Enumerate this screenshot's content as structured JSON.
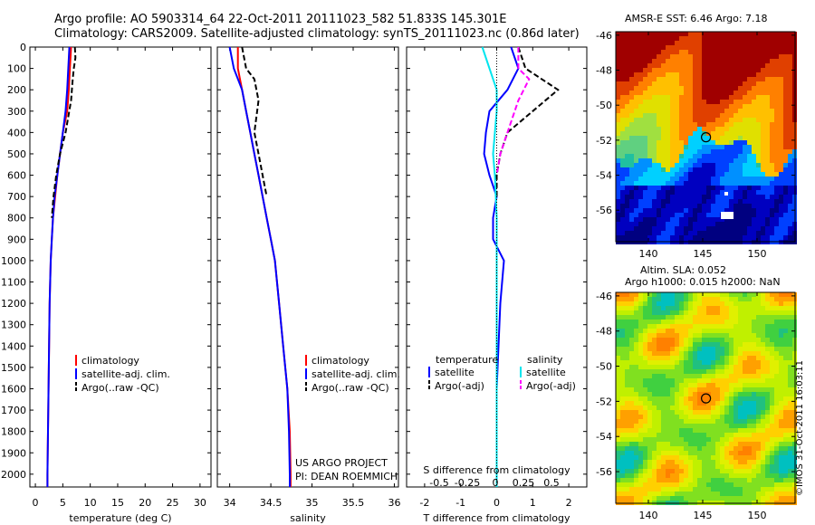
{
  "header": {
    "title_line1": "Argo profile: AO 5903314_64 22-Oct-2011 20111023_582 51.833S 145.301E",
    "title_line2": "Climatology: CARS2009. Satellite-adjusted climatology: synTS_20111023.nc (0.86d later)"
  },
  "chart_data": [
    {
      "type": "line",
      "id": "temperature",
      "xlabel": "temperature (deg C)",
      "xlim": [
        -1,
        32
      ],
      "xticks": [
        0,
        5,
        10,
        15,
        20,
        25,
        30
      ],
      "ylim": [
        0,
        2060
      ],
      "yticks": [
        0,
        100,
        200,
        300,
        400,
        500,
        600,
        700,
        800,
        900,
        1000,
        1100,
        1200,
        1300,
        1400,
        1500,
        1600,
        1700,
        1800,
        1900,
        2000
      ],
      "legend": [
        "climatology",
        "satellite-adj. clim.",
        "Argo(..raw -QC)"
      ],
      "series": [
        {
          "name": "climatology",
          "color": "#ff0000",
          "x": [
            6.5,
            6.3,
            6.1,
            5.8,
            5.0,
            4.5,
            4.0,
            3.6,
            3.2,
            3.0,
            2.8,
            2.6,
            2.5,
            2.45,
            2.4,
            2.35,
            2.3,
            2.25,
            2.2,
            2.2
          ],
          "y": [
            0,
            100,
            200,
            300,
            400,
            500,
            600,
            700,
            800,
            900,
            1000,
            1200,
            1400,
            1500,
            1600,
            1700,
            1800,
            1900,
            2000,
            2060
          ]
        },
        {
          "name": "satellite-adj. clim.",
          "color": "#0000ff",
          "x": [
            6.2,
            6.0,
            5.8,
            5.5,
            5.0,
            4.5,
            4.0,
            3.5,
            3.2,
            3.0,
            2.8,
            2.6,
            2.5,
            2.45,
            2.4,
            2.35,
            2.3,
            2.25,
            2.2,
            2.2
          ],
          "y": [
            0,
            100,
            200,
            300,
            400,
            500,
            600,
            700,
            800,
            900,
            1000,
            1200,
            1400,
            1500,
            1600,
            1700,
            1800,
            1900,
            2000,
            2060
          ]
        },
        {
          "name": "Argo(..raw -QC)",
          "color": "#000000",
          "dash": true,
          "x": [
            7.2,
            7.3,
            7.0,
            6.8,
            6.5,
            5.5,
            4.5,
            3.8,
            3.3,
            3.0
          ],
          "y": [
            0,
            50,
            100,
            150,
            250,
            400,
            500,
            600,
            700,
            800
          ]
        }
      ]
    },
    {
      "type": "line",
      "id": "salinity",
      "xlabel": "salinity",
      "xlim": [
        33.85,
        36.05
      ],
      "xticks": [
        34,
        34.5,
        35,
        35.5,
        36
      ],
      "ylim": [
        0,
        2060
      ],
      "legend": [
        "climatology",
        "satellite-adj. clim.",
        "Argo(..raw -QC)"
      ],
      "annotations": [
        "US ARGO PROJECT",
        "PI: DEAN ROEMMICH"
      ],
      "series": [
        {
          "name": "climatology",
          "color": "#ff0000",
          "x": [
            34.1,
            34.1,
            34.15,
            34.2,
            34.25,
            34.3,
            34.35,
            34.4,
            34.45,
            34.5,
            34.55,
            34.6,
            34.65,
            34.7,
            34.73,
            34.74,
            34.74
          ],
          "y": [
            0,
            100,
            200,
            300,
            400,
            500,
            600,
            700,
            800,
            900,
            1000,
            1200,
            1400,
            1600,
            1800,
            2000,
            2060
          ]
        },
        {
          "name": "satellite-adj. clim.",
          "color": "#0000ff",
          "x": [
            34.0,
            34.05,
            34.15,
            34.2,
            34.25,
            34.3,
            34.35,
            34.4,
            34.45,
            34.5,
            34.55,
            34.6,
            34.65,
            34.7,
            34.72,
            34.73,
            34.73
          ],
          "y": [
            0,
            100,
            200,
            300,
            400,
            500,
            600,
            700,
            800,
            900,
            1000,
            1200,
            1400,
            1600,
            1800,
            2000,
            2060
          ]
        },
        {
          "name": "Argo(..raw -QC)",
          "color": "#000000",
          "dash": true,
          "x": [
            34.15,
            34.2,
            34.3,
            34.35,
            34.3,
            34.35,
            34.4,
            34.45
          ],
          "y": [
            0,
            100,
            150,
            250,
            400,
            500,
            600,
            700
          ]
        }
      ]
    },
    {
      "type": "line",
      "id": "difference",
      "xlabel": "T difference from climatology",
      "xlabel_top": "S difference from climatology",
      "xlim": [
        -2.5,
        2.5
      ],
      "xticks": [
        -2,
        -1,
        0,
        1,
        2
      ],
      "xticks_top": [
        "-0.5",
        "-0.25",
        "0",
        "0.25",
        "0.5"
      ],
      "ylim": [
        0,
        2060
      ],
      "legend_temperature": {
        "title": "temperature",
        "items": [
          "satellite",
          "Argo(-adj)"
        ]
      },
      "legend_salinity": {
        "title": "salinity",
        "items": [
          "satellite",
          "Argo(-adj)"
        ]
      },
      "series": [
        {
          "name": "temperature satellite",
          "color": "#0000ff",
          "x": [
            0.4,
            0.6,
            0.3,
            -0.2,
            -0.3,
            -0.35,
            -0.2,
            0,
            -0.1,
            -0.1,
            0.2,
            0.1,
            0.05,
            0,
            0,
            0,
            0
          ],
          "y": [
            0,
            100,
            200,
            300,
            400,
            500,
            600,
            700,
            800,
            900,
            1000,
            1200,
            1400,
            1600,
            1800,
            2000,
            2060
          ]
        },
        {
          "name": "temperature Argo(-adj)",
          "color": "#000000",
          "dash": true,
          "x": [
            0.6,
            0.8,
            1.7,
            1.0,
            0.3,
            0.1,
            0,
            0
          ],
          "y": [
            0,
            100,
            200,
            300,
            400,
            500,
            600,
            700
          ]
        },
        {
          "name": "salinity satellite",
          "color": "#00e5ee",
          "x": [
            -0.4,
            -0.2,
            0,
            0,
            -0.05,
            -0.1,
            -0.05,
            0,
            0,
            0,
            0,
            0,
            0
          ],
          "y": [
            0,
            100,
            200,
            300,
            400,
            500,
            600,
            800,
            1000,
            1200,
            1600,
            2000,
            2060
          ]
        },
        {
          "name": "salinity Argo(-adj)",
          "color": "#ff00ff",
          "dash": true,
          "x": [
            0.6,
            0.6,
            0.9,
            0.6,
            0.3,
            0.1,
            0
          ],
          "y": [
            0,
            100,
            150,
            250,
            400,
            500,
            600
          ]
        }
      ]
    },
    {
      "type": "heatmap",
      "id": "sst-map",
      "title": "AMSR-E SST: 6.46 Argo: 7.18",
      "xticks": [
        140,
        145,
        150
      ],
      "yticks": [
        -46,
        -48,
        -50,
        -52,
        -54,
        -56
      ],
      "xlim": [
        137,
        153.5
      ],
      "ylim": [
        -57.8,
        -45.8
      ],
      "marker": {
        "lon": 145.301,
        "lat": -51.833
      }
    },
    {
      "type": "heatmap",
      "id": "sla-map",
      "title_line1": "Altim. SLA: 0.052",
      "title_line2": "Argo h1000: 0.015 h2000: NaN",
      "xticks": [
        140,
        145,
        150
      ],
      "yticks": [
        -46,
        -48,
        -50,
        -52,
        -54,
        -56
      ],
      "xlim": [
        137,
        153.5
      ],
      "ylim": [
        -57.8,
        -45.8
      ],
      "marker": {
        "lon": 145.301,
        "lat": -51.833
      }
    }
  ],
  "watermark": "©IMOS 31-Oct-2011 16:03:11"
}
